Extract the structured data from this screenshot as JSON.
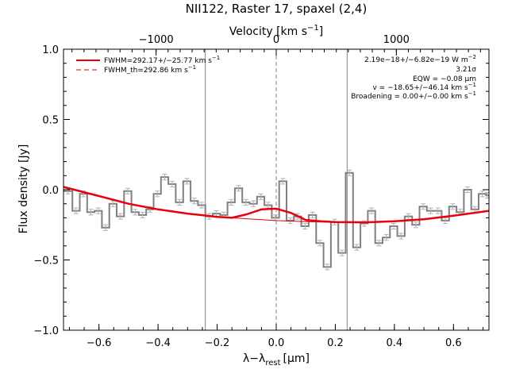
{
  "chart_data": {
    "type": "line",
    "title": "NII122, Raster 17, spaxel (2,4)",
    "xlabel": "λ−λ",
    "xlabel_sub": "rest",
    "xlabel_unit": "[μm]",
    "ylabel": "Flux density [Jy]",
    "x2label": "Velocity [km s",
    "x2label_sup": "−1",
    "x2label_end": "]",
    "xlim": [
      -0.72,
      0.72
    ],
    "ylim": [
      -1.0,
      1.0
    ],
    "x_ticks": [
      -0.6,
      -0.4,
      -0.2,
      0.0,
      0.2,
      0.4,
      0.6
    ],
    "x_tick_labels": [
      "−0.6",
      "−0.4",
      "−0.2",
      "0.0",
      "0.2",
      "0.4",
      "0.6"
    ],
    "y_ticks": [
      -1.0,
      -0.5,
      0.0,
      0.5,
      1.0
    ],
    "y_tick_labels": [
      "−1.0",
      "−0.5",
      "0.0",
      "0.5",
      "1.0"
    ],
    "x2_ticks": [
      -1000,
      0,
      1000
    ],
    "x2_tick_labels": [
      "−1000",
      "0",
      "1000"
    ],
    "rest_wavelength_um": 121.9,
    "vertical_lines": [
      -0.24,
      0.0,
      0.24
    ],
    "legend": {
      "placement": "top-left",
      "entries": [
        {
          "label": "FWHM=292.17+/−25.77 km s",
          "sup": "−1",
          "style": "solid",
          "color": "#e8000b"
        },
        {
          "label": "FWHM_th=292.86 km s",
          "sup": "−1",
          "style": "dashed",
          "color": "#e8000b"
        }
      ]
    },
    "annotations": [
      {
        "text": "2.19e−18+/−6.82e−19 W m",
        "sup": "−2"
      },
      {
        "text": "3.21σ"
      },
      {
        "text": "EQW = −0.08 μm"
      },
      {
        "text": "v = −18.65+/−46.14 km s",
        "sup": "−1"
      },
      {
        "text": "Broadening = 0.00+/−0.00 km s",
        "sup": "−1"
      }
    ],
    "series": [
      {
        "kind": "spectrum-step",
        "color": "#808080",
        "x": [
          -0.72,
          -0.69,
          -0.665,
          -0.64,
          -0.615,
          -0.59,
          -0.565,
          -0.54,
          -0.515,
          -0.49,
          -0.465,
          -0.44,
          -0.415,
          -0.39,
          -0.365,
          -0.34,
          -0.315,
          -0.29,
          -0.265,
          -0.24,
          -0.215,
          -0.19,
          -0.165,
          -0.14,
          -0.115,
          -0.09,
          -0.065,
          -0.04,
          -0.015,
          0.01,
          0.035,
          0.06,
          0.085,
          0.11,
          0.135,
          0.16,
          0.185,
          0.21,
          0.235,
          0.26,
          0.285,
          0.31,
          0.335,
          0.36,
          0.385,
          0.41,
          0.435,
          0.46,
          0.485,
          0.51,
          0.535,
          0.56,
          0.585,
          0.61,
          0.635,
          0.66,
          0.685,
          0.71
        ],
        "y": [
          -0.01,
          -0.15,
          -0.03,
          -0.16,
          -0.15,
          -0.27,
          -0.1,
          -0.19,
          -0.01,
          -0.16,
          -0.18,
          -0.14,
          -0.03,
          0.09,
          0.04,
          -0.09,
          0.06,
          -0.08,
          -0.11,
          -0.19,
          -0.17,
          -0.18,
          -0.09,
          0.01,
          -0.09,
          -0.1,
          -0.05,
          -0.11,
          -0.2,
          0.06,
          -0.22,
          -0.19,
          -0.26,
          -0.18,
          -0.38,
          -0.55,
          -0.23,
          -0.45,
          0.12,
          -0.41,
          -0.24,
          -0.15,
          -0.38,
          -0.34,
          -0.26,
          -0.33,
          -0.19,
          -0.25,
          -0.12,
          -0.15,
          -0.15,
          -0.22,
          -0.12,
          -0.16,
          0.0,
          -0.14,
          -0.03,
          -0.04
        ],
        "error": 0.02
      },
      {
        "kind": "fit",
        "color": "#e8000b",
        "x": [
          -0.72,
          -0.6,
          -0.5,
          -0.4,
          -0.3,
          -0.2,
          -0.15,
          -0.1,
          -0.05,
          0.0,
          0.05,
          0.1,
          0.15,
          0.2,
          0.3,
          0.4,
          0.5,
          0.6,
          0.72
        ],
        "y": [
          0.02,
          -0.045,
          -0.1,
          -0.14,
          -0.17,
          -0.193,
          -0.2,
          -0.175,
          -0.14,
          -0.135,
          -0.165,
          -0.215,
          -0.225,
          -0.23,
          -0.232,
          -0.225,
          -0.21,
          -0.185,
          -0.15
        ]
      },
      {
        "kind": "baseline",
        "color": "#e8000b",
        "x": [
          -0.72,
          -0.6,
          -0.5,
          -0.4,
          -0.3,
          -0.2,
          -0.1,
          0.0,
          0.1,
          0.2,
          0.3,
          0.4,
          0.5,
          0.6,
          0.72
        ],
        "y": [
          0.02,
          -0.045,
          -0.1,
          -0.14,
          -0.17,
          -0.193,
          -0.207,
          -0.22,
          -0.227,
          -0.232,
          -0.232,
          -0.225,
          -0.21,
          -0.185,
          -0.15
        ]
      }
    ]
  }
}
